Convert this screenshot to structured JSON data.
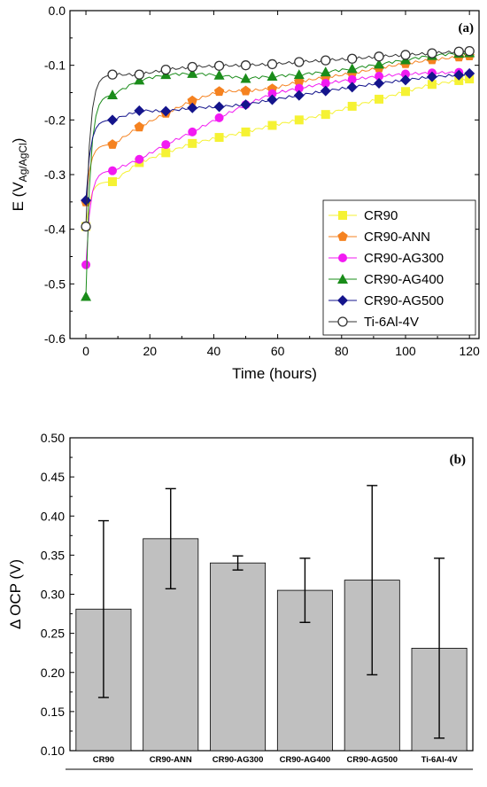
{
  "chart_data": [
    {
      "type": "line",
      "panel": "(a)",
      "xlabel": "Time (hours)",
      "ylabel_main": "E (V",
      "ylabel_sub": "Ag/AgCl",
      "ylabel_close": ")",
      "xlim": [
        -5,
        123
      ],
      "ylim": [
        -0.6,
        0.0
      ],
      "xticks": [
        "0",
        "20",
        "40",
        "60",
        "80",
        "100",
        "120"
      ],
      "yticks": [
        "0.0",
        "-0.1",
        "-0.2",
        "-0.3",
        "-0.4",
        "-0.5",
        "-0.6"
      ],
      "legend_position": "bottom-right",
      "series": [
        {
          "name": "CR90",
          "color": "#f5f233",
          "marker": "square",
          "x": [
            0,
            8.3,
            16.7,
            25,
            33.3,
            41.7,
            50,
            58.3,
            66.7,
            75,
            83.3,
            91.7,
            100,
            108.3,
            116.7,
            120
          ],
          "y": [
            -0.395,
            -0.313,
            -0.278,
            -0.26,
            -0.243,
            -0.232,
            -0.222,
            -0.21,
            -0.2,
            -0.19,
            -0.175,
            -0.162,
            -0.148,
            -0.135,
            -0.128,
            -0.125
          ]
        },
        {
          "name": "CR90-ANN",
          "color": "#f58220",
          "marker": "pentagon",
          "x": [
            0,
            8.3,
            16.7,
            25,
            33.3,
            41.7,
            50,
            58.3,
            66.7,
            75,
            83.3,
            91.7,
            100,
            108.3,
            116.7,
            120
          ],
          "y": [
            -0.35,
            -0.245,
            -0.213,
            -0.188,
            -0.165,
            -0.148,
            -0.147,
            -0.143,
            -0.13,
            -0.122,
            -0.115,
            -0.105,
            -0.097,
            -0.09,
            -0.085,
            -0.083
          ]
        },
        {
          "name": "CR90-AG300",
          "color": "#f21af2",
          "marker": "circle",
          "x": [
            0,
            8.3,
            16.7,
            25,
            33.3,
            41.7,
            50,
            58.3,
            66.7,
            75,
            83.3,
            91.7,
            100,
            108.3,
            116.7
          ],
          "y": [
            -0.465,
            -0.293,
            -0.272,
            -0.245,
            -0.222,
            -0.196,
            -0.172,
            -0.152,
            -0.142,
            -0.133,
            -0.126,
            -0.12,
            -0.116,
            -0.114,
            -0.113
          ]
        },
        {
          "name": "CR90-AG400",
          "color": "#1a8c1a",
          "marker": "triangle",
          "x": [
            0,
            8.3,
            16.7,
            25,
            33.3,
            41.7,
            50,
            58.3,
            66.7,
            75,
            83.3,
            91.7,
            100,
            108.3,
            116.7,
            120
          ],
          "y": [
            -0.523,
            -0.154,
            -0.127,
            -0.117,
            -0.115,
            -0.118,
            -0.124,
            -0.12,
            -0.117,
            -0.112,
            -0.106,
            -0.098,
            -0.09,
            -0.082,
            -0.078,
            -0.077
          ]
        },
        {
          "name": "CR90-AG500",
          "color": "#14148c",
          "marker": "diamond",
          "x": [
            0,
            8.3,
            16.7,
            25,
            33.3,
            41.7,
            50,
            58.3,
            66.7,
            75,
            83.3,
            91.7,
            100,
            108.3,
            116.7,
            120
          ],
          "y": [
            -0.347,
            -0.2,
            -0.183,
            -0.184,
            -0.178,
            -0.176,
            -0.172,
            -0.163,
            -0.155,
            -0.147,
            -0.14,
            -0.133,
            -0.127,
            -0.121,
            -0.118,
            -0.115
          ]
        },
        {
          "name": "Ti-6Al-4V",
          "color": "#333333",
          "marker": "open-circle",
          "x": [
            0,
            8.3,
            16.7,
            25,
            33.3,
            41.7,
            50,
            58.3,
            66.7,
            75,
            83.3,
            91.7,
            100,
            108.3,
            116.7,
            120
          ],
          "y": [
            -0.395,
            -0.117,
            -0.117,
            -0.108,
            -0.103,
            -0.101,
            -0.1,
            -0.098,
            -0.094,
            -0.091,
            -0.088,
            -0.084,
            -0.081,
            -0.078,
            -0.075,
            -0.074
          ]
        }
      ]
    },
    {
      "type": "bar",
      "panel": "(b)",
      "ylabel": "Δ OCP (V)",
      "ylim": [
        0.1,
        0.5
      ],
      "yticks": [
        "0.50",
        "0.45",
        "0.40",
        "0.35",
        "0.30",
        "0.25",
        "0.20",
        "0.15",
        "0.10"
      ],
      "bar_color": "#c0c0c0",
      "categories": [
        "CR90",
        "CR90-ANN",
        "CR90-AG300",
        "CR90-AG400",
        "CR90-AG500",
        "Ti-6Al-4V"
      ],
      "values": [
        0.281,
        0.371,
        0.34,
        0.305,
        0.318,
        0.231
      ],
      "errors": [
        0.113,
        0.064,
        0.009,
        0.041,
        0.121,
        0.115
      ]
    }
  ]
}
